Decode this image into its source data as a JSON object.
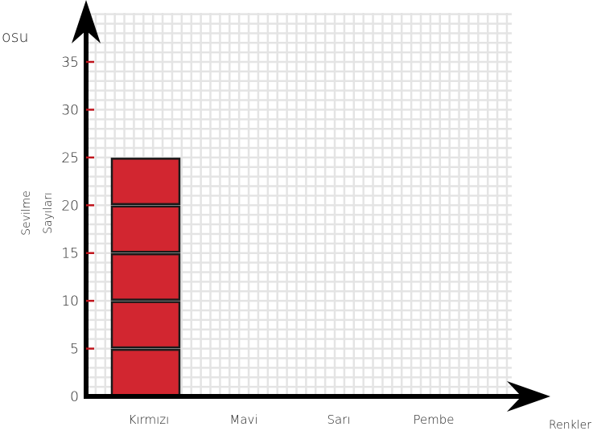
{
  "chart_data": {
    "type": "bar",
    "title": "osu",
    "categories": [
      "Kırmızı",
      "Mavi",
      "Sarı",
      "Pembe"
    ],
    "values": [
      25,
      0,
      0,
      0
    ],
    "unit_per_block": 5,
    "xlabel": "Renkler",
    "ylabel_lines": [
      "Sevilme",
      "Sayıları"
    ],
    "ylim": [
      0,
      35
    ],
    "yticks": [
      0,
      5,
      10,
      15,
      20,
      25,
      30,
      35
    ],
    "grid": true,
    "colors": {
      "bar": "#d22630",
      "bar_outline": "#1a1a1a",
      "grid": "#e4e4e4",
      "axis": "#000000",
      "tick_mark": "#c0141c"
    }
  }
}
